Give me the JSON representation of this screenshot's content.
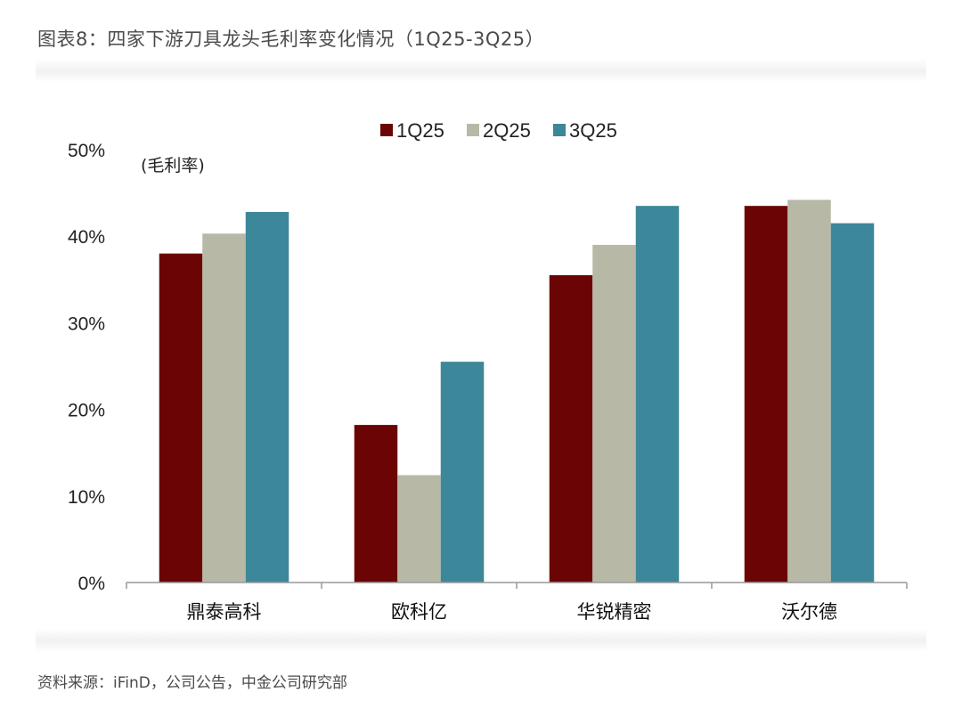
{
  "figure": {
    "title": "图表8：四家下游刀具龙头毛利率变化情况（1Q25-3Q25）",
    "source": "资料来源：iFinD，公司公告，中金公司研究部"
  },
  "chart_data": {
    "type": "bar",
    "title": "图表8：四家下游刀具龙头毛利率变化情况（1Q25-3Q25）",
    "ylabel": "(毛利率)",
    "xlabel": "",
    "categories": [
      "鼎泰高科",
      "欧科亿",
      "华锐精密",
      "沃尔德"
    ],
    "series": [
      {
        "name": "1Q25",
        "color": "#6b0505",
        "values": [
          38.0,
          18.2,
          35.5,
          43.5
        ]
      },
      {
        "name": "2Q25",
        "color": "#b8b8a6",
        "values": [
          40.3,
          12.4,
          39.0,
          44.2
        ]
      },
      {
        "name": "3Q25",
        "color": "#3c8799",
        "values": [
          42.8,
          25.5,
          43.5,
          41.5
        ]
      }
    ],
    "ylim": [
      0,
      50
    ],
    "yticks": [
      "0%",
      "10%",
      "20%",
      "30%",
      "40%",
      "50%"
    ],
    "ytick_values": [
      0,
      10,
      20,
      30,
      40,
      50
    ],
    "grid": false,
    "legend_position": "top-center"
  }
}
